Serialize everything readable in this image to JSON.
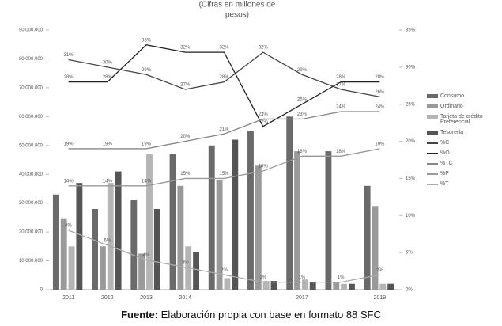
{
  "chart_data": {
    "type": "bar-line",
    "title": [
      "(Cifras en millones de",
      "pesos)"
    ],
    "categories": [
      "2011",
      "2012",
      "2013",
      "2014",
      null,
      null,
      "2017",
      null,
      "2019"
    ],
    "series": [
      {
        "name": "Consumo",
        "color": "#6a6a6a",
        "values": [
          33000000,
          28000000,
          31000000,
          47000000,
          50000000,
          55000000,
          60000000,
          48000000,
          36000000
        ]
      },
      {
        "name": "Ordinario",
        "color": "#9a9a9a",
        "values": [
          24500000,
          15000000,
          12500000,
          36000000,
          38000000,
          43000000,
          48000000,
          2500000,
          29000000
        ]
      },
      {
        "name": "Tarjeta de crédito Preferencial",
        "color": "#b5b5b5",
        "values": [
          15000000,
          37000000,
          47000000,
          15000000,
          4000000,
          3000000,
          3500000,
          2000000,
          2000000
        ]
      },
      {
        "name": "Tesorería",
        "color": "#555555",
        "values": [
          37000000,
          41000000,
          28000000,
          13000000,
          52000000,
          3000000,
          2500000,
          2000000,
          2000000
        ]
      },
      {
        "name": "%C",
        "color": "#444444",
        "axis": "y2",
        "values": [
          31,
          30,
          29,
          27,
          28,
          32,
          29,
          27,
          26
        ],
        "value_labels": [
          "31%",
          "30%",
          "29%",
          "27%",
          "28%",
          "32%",
          "29%",
          "27%",
          "26%"
        ]
      },
      {
        "name": "%O",
        "color": "#222222",
        "axis": "y2",
        "values": [
          28,
          28,
          33,
          32,
          32,
          22,
          25,
          28,
          28
        ],
        "value_labels": [
          "28%",
          "28%",
          "33%",
          "32%",
          "32%",
          "22%",
          "25%",
          "28%",
          "28%"
        ]
      },
      {
        "name": "%TC",
        "color": "#888888",
        "axis": "y2",
        "values": [
          19,
          19,
          19,
          20,
          21,
          23,
          23,
          24,
          24
        ],
        "value_labels": [
          "19%",
          "19%",
          "19%",
          "20%",
          "21%",
          "23%",
          "23%",
          "24%",
          "24%"
        ]
      },
      {
        "name": "%P",
        "color": "#999999",
        "axis": "y2",
        "values": [
          14,
          14,
          14,
          15,
          15,
          16,
          18,
          18,
          19
        ],
        "value_labels": [
          "14%",
          "14%",
          "14%",
          "15%",
          "15%",
          "16%",
          "18%",
          "18%",
          "19%"
        ]
      },
      {
        "name": "%T",
        "color": "#aaaaaa",
        "axis": "y2",
        "values": [
          8,
          6,
          4,
          3,
          2,
          1,
          1,
          1,
          2
        ],
        "value_labels": [
          "8%",
          "6%",
          "4%",
          "3%",
          "2%",
          "1%",
          "1%",
          "1%",
          "2%"
        ]
      }
    ],
    "ylim": [
      0,
      90000000
    ],
    "yticks": [
      0,
      {
        "value": 10000000,
        "label": "10.000.000"
      },
      {
        "value": 20000000,
        "label": "20.000.000"
      },
      {
        "value": 30000000,
        "label": "30.000.000"
      },
      {
        "value": 40000000,
        "label": "40.000.000"
      },
      {
        "value": 50000000,
        "label": "50.000.000"
      },
      {
        "value": 60000000,
        "label": "60.000.000"
      },
      {
        "value": 70000000,
        "label": "70.000.000"
      },
      {
        "value": 80000000,
        "label": "80.000.000"
      },
      {
        "value": 90000000,
        "label": "90.000.000"
      }
    ],
    "y2lim": [
      0,
      35
    ],
    "y2ticks": [
      {
        "value": 0,
        "label": "0%"
      },
      {
        "value": 5,
        "label": "5%"
      },
      {
        "value": 10,
        "label": "10%"
      },
      {
        "value": 15,
        "label": "15%"
      },
      {
        "value": 20,
        "label": "20%"
      },
      {
        "value": 25,
        "label": "25%"
      },
      {
        "value": 30,
        "label": "30%"
      },
      {
        "value": 35,
        "label": "35%"
      }
    ],
    "source_label": "Fuente:",
    "source": "Elaboración propia con base en formato 88 SFC"
  }
}
